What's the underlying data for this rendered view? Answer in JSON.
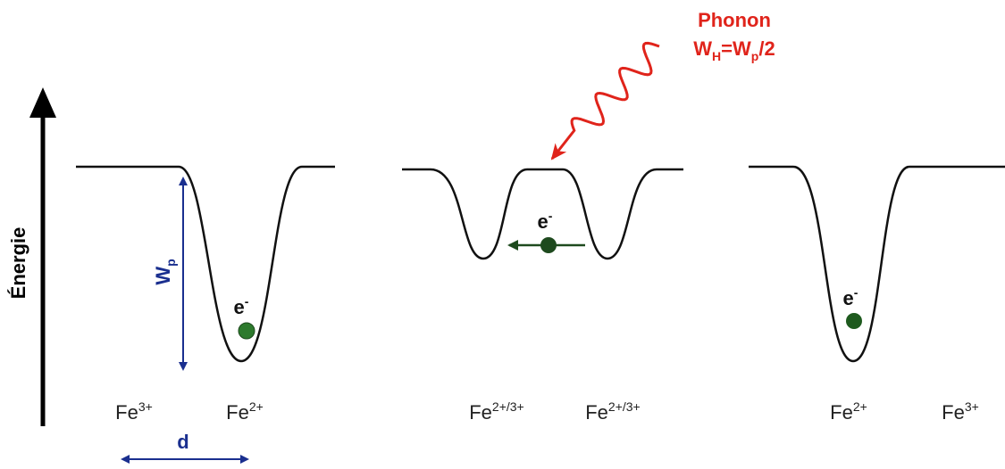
{
  "axis_label": "Énergie",
  "phonon": {
    "label": "Phonon",
    "formula": [
      "W",
      "H",
      "=W",
      "p",
      "/2"
    ]
  },
  "wp_label": [
    "W",
    "p"
  ],
  "d_label": "d",
  "panels": [
    {
      "electron": [
        "e",
        "-"
      ],
      "labels": [
        [
          "Fe",
          "3+"
        ],
        [
          "Fe",
          "2+"
        ]
      ]
    },
    {
      "electron": [
        "e",
        "-"
      ],
      "labels": [
        [
          "Fe",
          "2+/3+"
        ],
        [
          "Fe",
          "2+/3+"
        ]
      ]
    },
    {
      "electron": [
        "e",
        "-"
      ],
      "labels": [
        [
          "Fe",
          "2+"
        ],
        [
          "Fe",
          "3+"
        ]
      ]
    }
  ]
}
